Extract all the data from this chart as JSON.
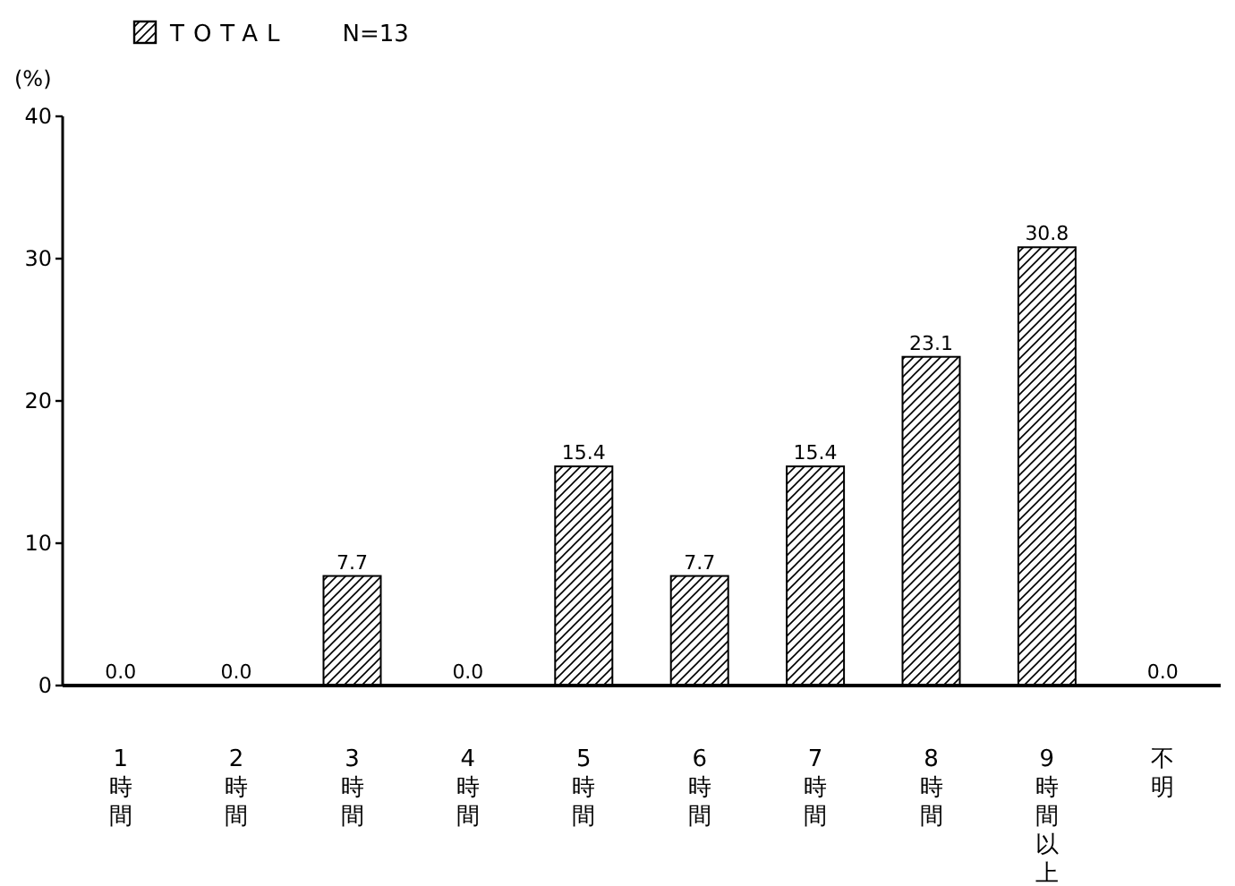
{
  "chart_data": {
    "type": "bar",
    "ylabel": "(%)",
    "categories": [
      "1時間",
      "2時間",
      "3時間",
      "4時間",
      "5時間",
      "6時間",
      "7時間",
      "8時間",
      "9時間以上",
      "不明"
    ],
    "series": [
      {
        "name": "TOTAL",
        "color": "#000000",
        "values": [
          0.0,
          0.0,
          7.7,
          0.0,
          15.4,
          7.7,
          15.4,
          23.1,
          30.8,
          0.0
        ],
        "value_labels": [
          "0.0",
          "0.0",
          "7.7",
          "0.0",
          "15.4",
          "7.7",
          "15.4",
          "23.1",
          "30.8",
          "0.0"
        ]
      }
    ],
    "ylim": [
      0,
      40
    ],
    "yticks": [
      0,
      10,
      20,
      30,
      40
    ],
    "legend": "top left",
    "annotations": [
      "N=13"
    ]
  }
}
